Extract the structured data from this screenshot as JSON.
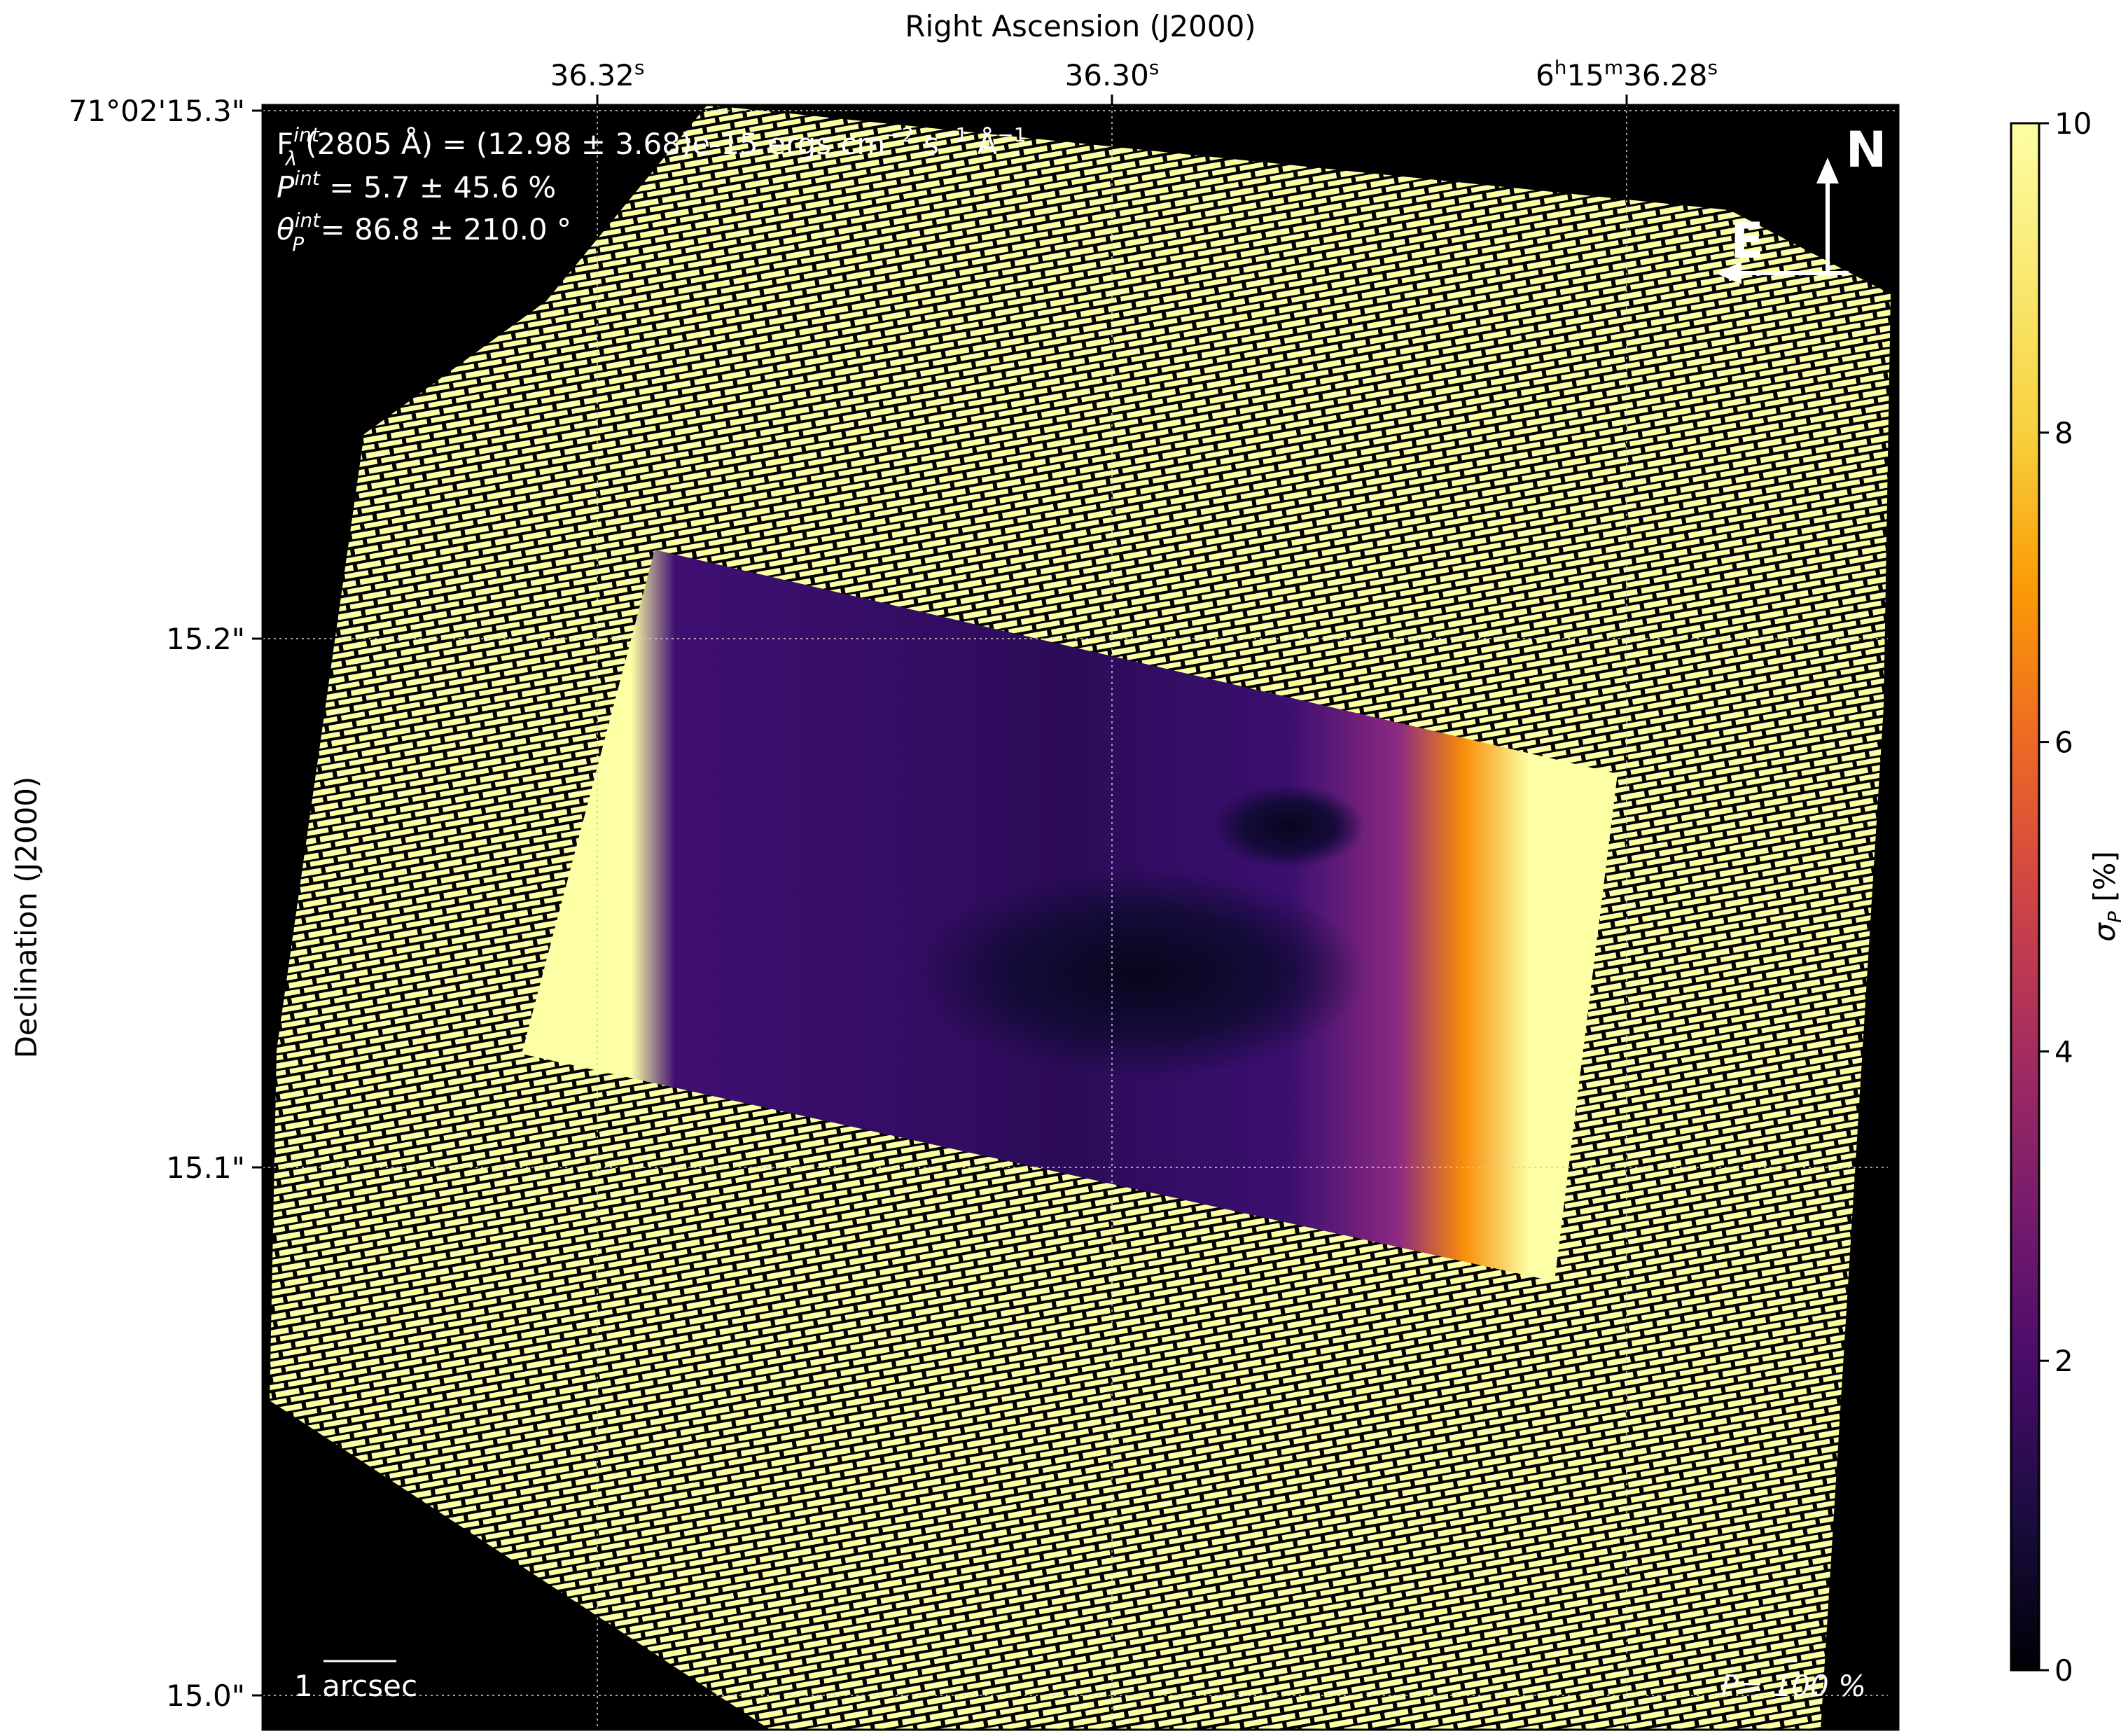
{
  "chart_data": {
    "type": "heatmap",
    "title": "",
    "xlabel": "Right Ascension (J2000)",
    "ylabel": "Declination (J2000)",
    "x_ticks": [
      "36.32",
      "36.30",
      "6h15m36.28"
    ],
    "x_tick_units": {
      "hour_sup": "h",
      "min_sup": "m",
      "sec_sup": "s"
    },
    "y_ticks": [
      "71°02'15.3\"",
      "15.2\"",
      "15.1\"",
      "15.0\""
    ],
    "y_tick_values": [
      15.3,
      15.2,
      15.1,
      15.0
    ],
    "grid": true,
    "colorbar": {
      "label": "σ_P [%]",
      "label_main": "σ",
      "label_sub": "P",
      "label_unit": " [%]",
      "range": [
        0,
        10
      ],
      "ticks": [
        0,
        2,
        4,
        6,
        8,
        10
      ],
      "colormap": "inferno"
    },
    "annotations": {
      "flux": {
        "main": "F",
        "sup": "int",
        "sub": "λ",
        "rest": "(2805 Å) = (12.98 ± 3.68)e-15 ergs cm",
        "cm_exp": "−2",
        "s_text": " s",
        "s_exp": "−1",
        "a_text": " Å",
        "a_exp": "−1"
      },
      "pol": {
        "main": "P",
        "sup": "int",
        "rest": " = 5.7 ± 45.6 %"
      },
      "angle": {
        "main": "θ",
        "sup": "int",
        "sub": "P",
        "rest": " = 86.8 ± 210.0 °"
      },
      "scale_bar": "1 arcsec",
      "pol_ref": "P= 100 %",
      "compass_north": "N",
      "compass_east": "E"
    },
    "colors": {
      "background": "#000000",
      "saturated": "#fcffa4",
      "low": "#1b0c41",
      "mid": "#6a176e",
      "high": "#f98e09"
    }
  }
}
